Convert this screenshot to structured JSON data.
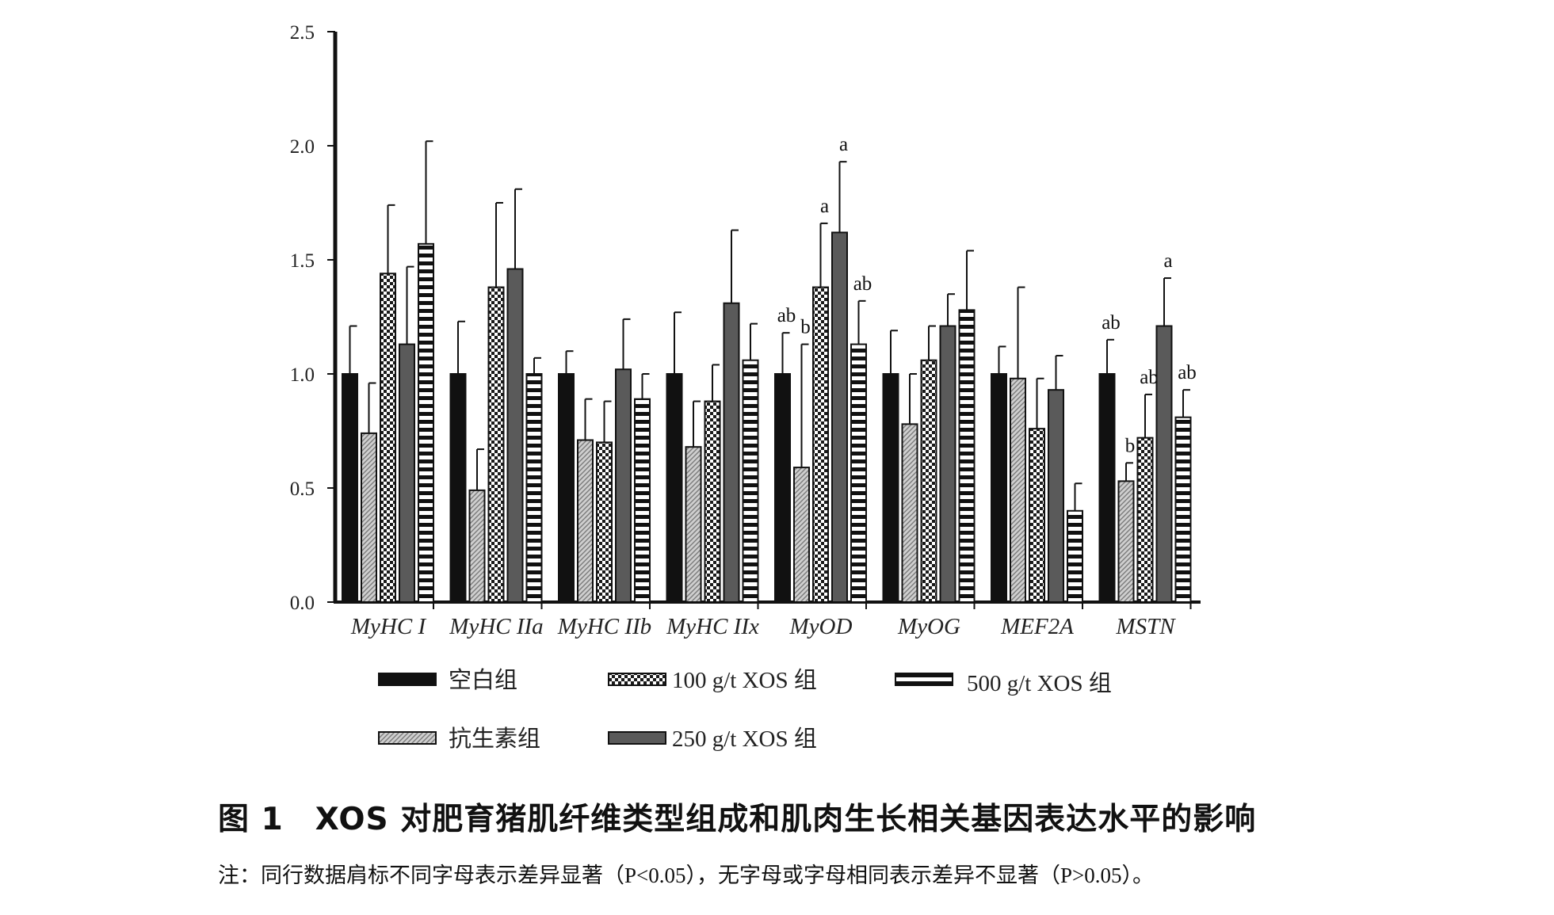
{
  "chart_data": {
    "type": "bar",
    "ylim": [
      0,
      2.5
    ],
    "yticks": [
      "0.0",
      "0.5",
      "1.0",
      "1.5",
      "2.0",
      "2.5"
    ],
    "ytick_values": [
      0,
      0.5,
      1.0,
      1.5,
      2.0,
      2.5
    ],
    "categories": [
      "MyHC I",
      "MyHC IIa",
      "MyHC IIb",
      "MyHC IIx",
      "MyOD",
      "MyOG",
      "MEF2A",
      "MSTN"
    ],
    "series": [
      {
        "name": "空白组",
        "pattern": "solid-black",
        "values": [
          1.0,
          1.0,
          1.0,
          1.0,
          1.0,
          1.0,
          1.0,
          1.0
        ],
        "errors": [
          0.21,
          0.23,
          0.1,
          0.27,
          0.18,
          0.19,
          0.12,
          0.15
        ],
        "labels": [
          "",
          "",
          "",
          "",
          "ab",
          "",
          "",
          "ab"
        ]
      },
      {
        "name": "抗生素组",
        "pattern": "fine-hatch",
        "values": [
          0.74,
          0.49,
          0.71,
          0.68,
          0.59,
          0.78,
          0.98,
          0.53
        ],
        "errors": [
          0.22,
          0.18,
          0.18,
          0.2,
          0.54,
          0.22,
          0.4,
          0.08
        ],
        "labels": [
          "",
          "",
          "",
          "",
          "b",
          "",
          "",
          "b"
        ]
      },
      {
        "name": "100 g/t XOS 组",
        "pattern": "checker",
        "values": [
          1.44,
          1.38,
          0.7,
          0.88,
          1.38,
          1.06,
          0.76,
          0.72
        ],
        "errors": [
          0.3,
          0.37,
          0.18,
          0.16,
          0.28,
          0.15,
          0.22,
          0.19
        ],
        "labels": [
          "",
          "",
          "",
          "",
          "a",
          "",
          "",
          "ab"
        ]
      },
      {
        "name": "250 g/t XOS 组",
        "pattern": "solid-gray",
        "values": [
          1.13,
          1.46,
          1.02,
          1.31,
          1.62,
          1.21,
          0.93,
          1.21
        ],
        "errors": [
          0.34,
          0.35,
          0.22,
          0.32,
          0.31,
          0.14,
          0.15,
          0.21
        ],
        "labels": [
          "",
          "",
          "",
          "",
          "a",
          "",
          "",
          "a"
        ]
      },
      {
        "name": "500 g/t XOS 组",
        "pattern": "horizontal-stripe",
        "values": [
          1.57,
          1.0,
          0.89,
          1.06,
          1.13,
          1.28,
          0.4,
          0.81
        ],
        "errors": [
          0.45,
          0.07,
          0.11,
          0.16,
          0.19,
          0.26,
          0.12,
          0.12
        ],
        "labels": [
          "",
          "",
          "",
          "",
          "ab",
          "",
          "",
          "ab"
        ]
      }
    ],
    "grid": false,
    "legend_placement": "bottom"
  },
  "legend": {
    "order": [
      0,
      2,
      4,
      1,
      3
    ]
  },
  "title": "图 1　XOS 对肥育猪肌纤维类型组成和肌肉生长相关基因表达水平的影响",
  "note": "注：同行数据肩标不同字母表示差异显著（P<0.05），无字母或字母相同表示差异不显著（P>0.05）。"
}
